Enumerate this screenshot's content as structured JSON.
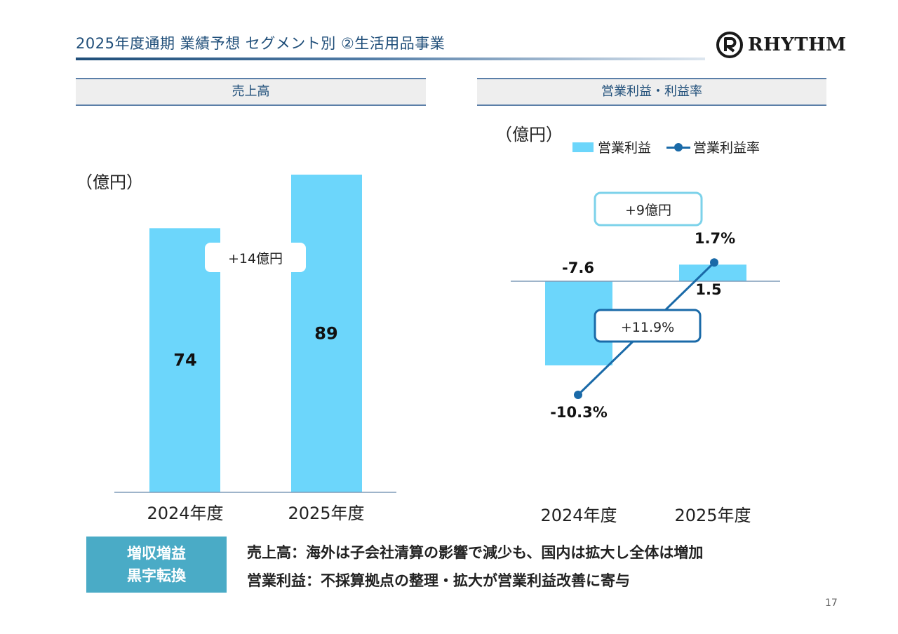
{
  "title": "2025年度通期 業績予想 セグメント別 ②生活用品事業",
  "logo_text": "RHYTHM",
  "page_number": "17",
  "colors": {
    "bar": "#6cd6fb",
    "line": "#1a6aa8",
    "title": "#1f4e79",
    "summary_box": "#4aabc6"
  },
  "chart_data": [
    {
      "type": "bar",
      "title": "売上高",
      "unit_label": "（億円）",
      "categories": [
        "2024年度",
        "2025年度"
      ],
      "values": [
        74,
        89
      ],
      "value_labels": [
        "74",
        "89"
      ],
      "ylim": [
        0,
        89
      ],
      "annotation": "+14億円"
    },
    {
      "type": "bar+line",
      "title": "営業利益・利益率",
      "unit_label": "（億円）",
      "categories": [
        "2024年度",
        "2025年度"
      ],
      "series": [
        {
          "name": "営業利益",
          "type": "bar",
          "values": [
            -7.6,
            1.5
          ],
          "value_labels": [
            "-7.6",
            "1.5"
          ]
        },
        {
          "name": "営業利益率",
          "type": "line",
          "values": [
            -10.3,
            1.7
          ],
          "value_labels": [
            "-10.3%",
            "1.7%"
          ]
        }
      ],
      "annotations": {
        "bar_diff": "+9億円",
        "rate_diff": "+11.9%"
      },
      "legend": {
        "bar": "営業利益",
        "line": "営業利益率",
        "position": "top"
      }
    }
  ],
  "summary": {
    "badge_lines": [
      "増収増益",
      "黒字転換"
    ],
    "lines": [
      "売上高：海外は子会社清算の影響で減少も、国内は拡大し全体は増加",
      "営業利益：不採算拠点の整理・拡大が営業利益改善に寄与"
    ]
  }
}
